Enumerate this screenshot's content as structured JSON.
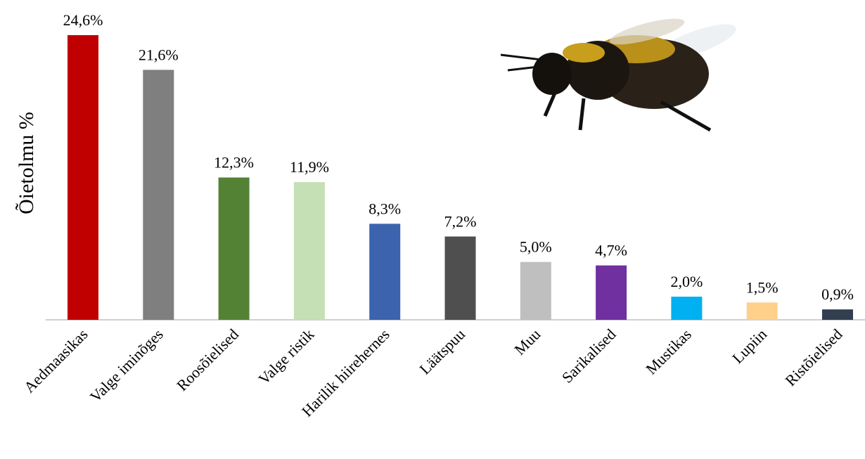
{
  "chart_data": {
    "type": "bar",
    "y_label": "Õietolmu %",
    "categories": [
      "Aedmaasikas",
      "Valge iminõges",
      "Roosõielised",
      "Valge ristik",
      "Harilik hiirehernes",
      "Läätspuu",
      "Muu",
      "Sarikalised",
      "Mustikas",
      "Lupiin",
      "Ristõielised"
    ],
    "values": [
      24.6,
      21.6,
      12.3,
      11.9,
      8.3,
      7.2,
      5.0,
      4.7,
      2.0,
      1.5,
      0.9
    ],
    "value_labels": [
      "24,6%",
      "21,6%",
      "12,3%",
      "11,9%",
      "8,3%",
      "7,2%",
      "5,0%",
      "4,7%",
      "2,0%",
      "1,5%",
      "0,9%"
    ],
    "colors": [
      "#c00000",
      "#7f7f7f",
      "#548235",
      "#c5e0b4",
      "#3c64ae",
      "#4f4f4f",
      "#bfbfbf",
      "#7030a0",
      "#00b0f0",
      "#ffd08a",
      "#323f4f"
    ]
  }
}
